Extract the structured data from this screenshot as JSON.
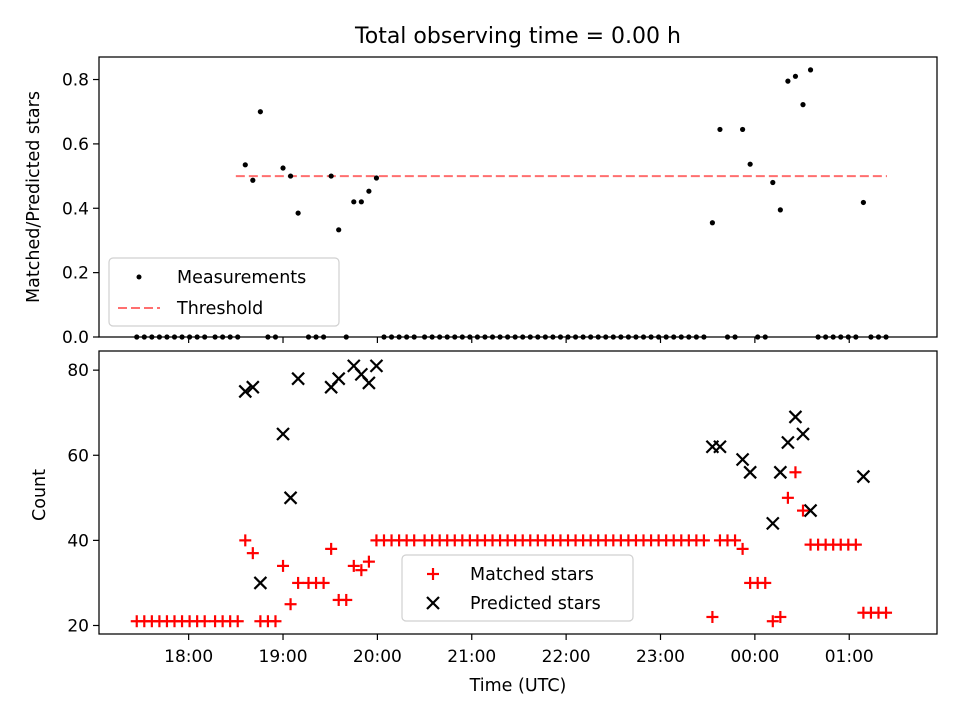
{
  "chart_data": [
    {
      "type": "scatter",
      "title": "Total observing time = 0.00 h",
      "xlabel": "",
      "ylabel": "Matched/Predicted stars",
      "ylim": [
        0,
        0.87
      ],
      "yticks": [
        0.0,
        0.2,
        0.4,
        0.6,
        0.8
      ],
      "ytick_labels": [
        "0.0",
        "0.2",
        "0.4",
        "0.6",
        "0.8"
      ],
      "legend_placement": "lower-left",
      "threshold": {
        "name": "Threshold",
        "y": 0.5,
        "x_start": 18.5,
        "x_end": 25.4,
        "color": "#ff6f6f"
      },
      "series": [
        {
          "name": "Measurements",
          "color": "#000000",
          "points": [
            [
              17.45,
              0
            ],
            [
              17.53,
              0
            ],
            [
              17.61,
              0
            ],
            [
              17.69,
              0
            ],
            [
              17.77,
              0
            ],
            [
              17.85,
              0
            ],
            [
              17.93,
              0
            ],
            [
              18.01,
              0
            ],
            [
              18.09,
              0
            ],
            [
              18.17,
              0
            ],
            [
              18.28,
              0
            ],
            [
              18.36,
              0
            ],
            [
              18.44,
              0
            ],
            [
              18.52,
              0
            ],
            [
              18.6,
              0.535
            ],
            [
              18.68,
              0.487
            ],
            [
              18.76,
              0.7
            ],
            [
              18.84,
              0
            ],
            [
              18.92,
              0
            ],
            [
              19.0,
              0.525
            ],
            [
              19.08,
              0.5
            ],
            [
              19.16,
              0.385
            ],
            [
              19.27,
              0
            ],
            [
              19.35,
              0
            ],
            [
              19.43,
              0
            ],
            [
              19.51,
              0.5
            ],
            [
              19.59,
              0.333
            ],
            [
              19.67,
              0
            ],
            [
              19.75,
              0.42
            ],
            [
              19.83,
              0.42
            ],
            [
              19.91,
              0.453
            ],
            [
              19.99,
              0.494
            ],
            [
              20.07,
              0
            ],
            [
              20.15,
              0
            ],
            [
              20.23,
              0
            ],
            [
              20.31,
              0
            ],
            [
              20.39,
              0
            ],
            [
              20.5,
              0
            ],
            [
              20.58,
              0
            ],
            [
              20.66,
              0
            ],
            [
              20.74,
              0
            ],
            [
              20.82,
              0
            ],
            [
              20.9,
              0
            ],
            [
              20.98,
              0
            ],
            [
              21.06,
              0
            ],
            [
              21.14,
              0
            ],
            [
              21.22,
              0
            ],
            [
              21.3,
              0
            ],
            [
              21.38,
              0
            ],
            [
              21.46,
              0
            ],
            [
              21.54,
              0
            ],
            [
              21.62,
              0
            ],
            [
              21.7,
              0
            ],
            [
              21.78,
              0
            ],
            [
              21.86,
              0
            ],
            [
              21.94,
              0
            ],
            [
              22.02,
              0
            ],
            [
              22.1,
              0
            ],
            [
              22.18,
              0
            ],
            [
              22.26,
              0
            ],
            [
              22.34,
              0
            ],
            [
              22.42,
              0
            ],
            [
              22.5,
              0
            ],
            [
              22.58,
              0
            ],
            [
              22.66,
              0
            ],
            [
              22.74,
              0
            ],
            [
              22.82,
              0
            ],
            [
              22.9,
              0
            ],
            [
              22.98,
              0
            ],
            [
              23.06,
              0
            ],
            [
              23.14,
              0
            ],
            [
              23.22,
              0
            ],
            [
              23.3,
              0
            ],
            [
              23.38,
              0
            ],
            [
              23.46,
              0
            ],
            [
              23.55,
              0.355
            ],
            [
              23.63,
              0.645
            ],
            [
              23.71,
              0
            ],
            [
              23.79,
              0
            ],
            [
              23.87,
              0.645
            ],
            [
              23.95,
              0.537
            ],
            [
              24.03,
              0
            ],
            [
              24.11,
              0
            ],
            [
              24.19,
              0.48
            ],
            [
              24.27,
              0.395
            ],
            [
              24.35,
              0.795
            ],
            [
              24.43,
              0.81
            ],
            [
              24.51,
              0.722
            ],
            [
              24.59,
              0.83
            ],
            [
              24.67,
              0
            ],
            [
              24.75,
              0
            ],
            [
              24.83,
              0
            ],
            [
              24.91,
              0
            ],
            [
              24.99,
              0
            ],
            [
              25.07,
              0
            ],
            [
              25.15,
              0.418
            ],
            [
              25.23,
              0
            ],
            [
              25.31,
              0
            ],
            [
              25.39,
              0
            ]
          ]
        }
      ]
    },
    {
      "type": "scatter",
      "title": "",
      "xlabel": "Time (UTC)",
      "ylabel": "Count",
      "ylim": [
        18,
        84.5
      ],
      "xlim": [
        17.05,
        25.93
      ],
      "yticks": [
        20,
        40,
        60,
        80
      ],
      "ytick_labels": [
        "20",
        "40",
        "60",
        "80"
      ],
      "xticks": [
        18,
        19,
        20,
        21,
        22,
        23,
        24,
        25
      ],
      "xtick_labels": [
        "18:00",
        "19:00",
        "20:00",
        "21:00",
        "22:00",
        "23:00",
        "00:00",
        "01:00"
      ],
      "legend_placement": "lower-center",
      "series": [
        {
          "name": "Matched stars",
          "marker": "plus",
          "color": "#ff0000",
          "points": [
            [
              17.45,
              21
            ],
            [
              17.53,
              21
            ],
            [
              17.61,
              21
            ],
            [
              17.69,
              21
            ],
            [
              17.77,
              21
            ],
            [
              17.85,
              21
            ],
            [
              17.93,
              21
            ],
            [
              18.01,
              21
            ],
            [
              18.09,
              21
            ],
            [
              18.17,
              21
            ],
            [
              18.28,
              21
            ],
            [
              18.36,
              21
            ],
            [
              18.44,
              21
            ],
            [
              18.52,
              21
            ],
            [
              18.6,
              40
            ],
            [
              18.68,
              37
            ],
            [
              18.76,
              21
            ],
            [
              18.84,
              21
            ],
            [
              18.92,
              21
            ],
            [
              19.0,
              34
            ],
            [
              19.08,
              25
            ],
            [
              19.16,
              30
            ],
            [
              19.27,
              30
            ],
            [
              19.35,
              30
            ],
            [
              19.43,
              30
            ],
            [
              19.51,
              38
            ],
            [
              19.59,
              26
            ],
            [
              19.67,
              26
            ],
            [
              19.75,
              34
            ],
            [
              19.83,
              33
            ],
            [
              19.91,
              35
            ],
            [
              19.99,
              40
            ],
            [
              20.07,
              40
            ],
            [
              20.15,
              40
            ],
            [
              20.23,
              40
            ],
            [
              20.31,
              40
            ],
            [
              20.39,
              40
            ],
            [
              20.5,
              40
            ],
            [
              20.58,
              40
            ],
            [
              20.66,
              40
            ],
            [
              20.74,
              40
            ],
            [
              20.82,
              40
            ],
            [
              20.9,
              40
            ],
            [
              20.98,
              40
            ],
            [
              21.06,
              40
            ],
            [
              21.14,
              40
            ],
            [
              21.22,
              40
            ],
            [
              21.3,
              40
            ],
            [
              21.38,
              40
            ],
            [
              21.46,
              40
            ],
            [
              21.54,
              40
            ],
            [
              21.62,
              40
            ],
            [
              21.7,
              40
            ],
            [
              21.78,
              40
            ],
            [
              21.86,
              40
            ],
            [
              21.94,
              40
            ],
            [
              22.02,
              40
            ],
            [
              22.1,
              40
            ],
            [
              22.18,
              40
            ],
            [
              22.26,
              40
            ],
            [
              22.34,
              40
            ],
            [
              22.42,
              40
            ],
            [
              22.5,
              40
            ],
            [
              22.58,
              40
            ],
            [
              22.66,
              40
            ],
            [
              22.74,
              40
            ],
            [
              22.82,
              40
            ],
            [
              22.9,
              40
            ],
            [
              22.98,
              40
            ],
            [
              23.06,
              40
            ],
            [
              23.14,
              40
            ],
            [
              23.22,
              40
            ],
            [
              23.3,
              40
            ],
            [
              23.38,
              40
            ],
            [
              23.46,
              40
            ],
            [
              23.55,
              22
            ],
            [
              23.63,
              40
            ],
            [
              23.71,
              40
            ],
            [
              23.79,
              40
            ],
            [
              23.87,
              38
            ],
            [
              23.95,
              30
            ],
            [
              24.03,
              30
            ],
            [
              24.11,
              30
            ],
            [
              24.19,
              21
            ],
            [
              24.27,
              22
            ],
            [
              24.35,
              50
            ],
            [
              24.43,
              56
            ],
            [
              24.51,
              47
            ],
            [
              24.59,
              39
            ],
            [
              24.67,
              39
            ],
            [
              24.75,
              39
            ],
            [
              24.83,
              39
            ],
            [
              24.91,
              39
            ],
            [
              24.99,
              39
            ],
            [
              25.07,
              39
            ],
            [
              25.15,
              23
            ],
            [
              25.23,
              23
            ],
            [
              25.31,
              23
            ],
            [
              25.39,
              23
            ]
          ]
        },
        {
          "name": "Predicted stars",
          "marker": "x",
          "color": "#000000",
          "points": [
            [
              18.6,
              75
            ],
            [
              18.68,
              76
            ],
            [
              18.76,
              30
            ],
            [
              19.0,
              65
            ],
            [
              19.08,
              50
            ],
            [
              19.16,
              78
            ],
            [
              19.51,
              76
            ],
            [
              19.59,
              78
            ],
            [
              19.75,
              81
            ],
            [
              19.83,
              79
            ],
            [
              19.91,
              77
            ],
            [
              19.99,
              81
            ],
            [
              23.55,
              62
            ],
            [
              23.63,
              62
            ],
            [
              23.87,
              59
            ],
            [
              23.95,
              56
            ],
            [
              24.19,
              44
            ],
            [
              24.27,
              56
            ],
            [
              24.35,
              63
            ],
            [
              24.43,
              69
            ],
            [
              24.51,
              65
            ],
            [
              24.59,
              47
            ],
            [
              25.15,
              55
            ]
          ]
        }
      ]
    }
  ]
}
